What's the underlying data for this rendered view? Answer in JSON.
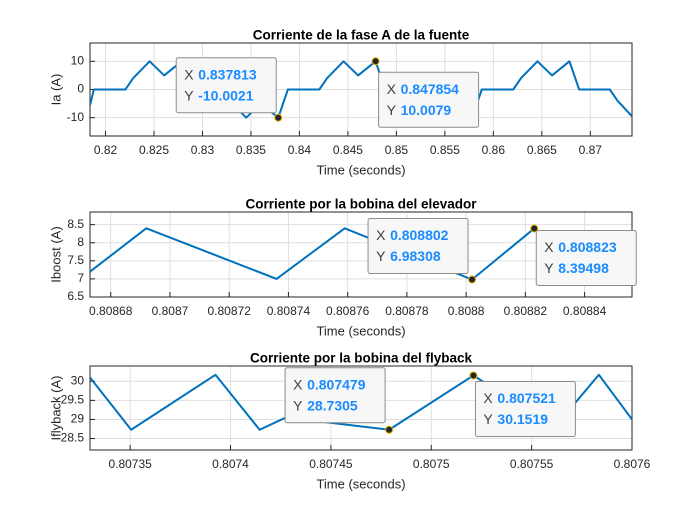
{
  "chart_data": [
    {
      "type": "line",
      "title": "Corriente de la fase A de la fuente",
      "xlabel": "Time (seconds)",
      "ylabel": "Ia (A)",
      "x": [
        0.8184,
        0.8188,
        0.82205,
        0.82285,
        0.82455,
        0.82605,
        0.82785,
        0.82885,
        0.83201,
        0.83281,
        0.83451,
        0.83601,
        0.837813,
        0.83881,
        0.84205,
        0.84285,
        0.84455,
        0.84605,
        0.847854,
        0.84885,
        0.85201,
        0.85281,
        0.85451,
        0.85601,
        0.85781,
        0.85881,
        0.86205,
        0.86285,
        0.86455,
        0.86605,
        0.86785,
        0.86885,
        0.87201,
        0.87281,
        0.8743
      ],
      "values": [
        -5.5,
        0,
        0,
        4,
        10,
        5,
        10,
        0,
        0,
        -4,
        -10,
        -5,
        -10.0021,
        0,
        0,
        4,
        10,
        5,
        10.0079,
        0,
        0,
        -4,
        -10,
        -5,
        -10,
        0,
        0,
        4,
        10,
        5,
        10,
        0,
        0,
        -4,
        -9.5
      ],
      "color": "#0072bd",
      "xlim": [
        0.8184,
        0.8743
      ],
      "xticks": [
        0.82,
        0.825,
        0.83,
        0.835,
        0.84,
        0.845,
        0.85,
        0.855,
        0.86,
        0.865,
        0.87
      ],
      "ylim": [
        -16.5,
        16.5
      ],
      "yticks": [
        -10,
        0,
        10
      ],
      "grid": true,
      "datatip_labels": [
        "X",
        "Y"
      ],
      "datatips": [
        {
          "x": 0.837813,
          "y": -10.0021
        },
        {
          "x": 0.847854,
          "y": 10.0079
        }
      ]
    },
    {
      "type": "line",
      "title": "Corriente por la bobina del elevador",
      "xlabel": "Time (seconds)",
      "ylabel": "Iboost (A)",
      "x": [
        0.808673,
        0.808692,
        0.808736,
        0.808759,
        0.808802,
        0.808823
      ],
      "values": [
        7.2,
        8.4,
        7.0,
        8.4,
        6.98308,
        8.39498
      ],
      "color": "#0072bd",
      "xlim": [
        0.808673,
        0.808856
      ],
      "xticks": [
        0.80868,
        0.8087,
        0.80872,
        0.80874,
        0.80876,
        0.80878,
        0.8088,
        0.80882,
        0.80884
      ],
      "ylim": [
        6.5,
        8.85
      ],
      "yticks": [
        6.5,
        7,
        7.5,
        8,
        8.5
      ],
      "grid": true,
      "datatip_labels": [
        "X",
        "Y"
      ],
      "datatips": [
        {
          "x": 0.808802,
          "y": 6.98308
        },
        {
          "x": 0.808823,
          "y": 8.39498
        }
      ]
    },
    {
      "type": "line",
      "title": "Corriente por la bobina del flyback",
      "xlabel": "Time (seconds)",
      "ylabel": "Iflyback (A)",
      "x": [
        0.80733,
        0.8073505,
        0.8073925,
        0.8074145,
        0.8074275,
        0.807479,
        0.807521,
        0.8075615,
        0.8075835,
        0.8076
      ],
      "values": [
        30.1,
        28.73,
        30.17,
        28.73,
        29.05,
        28.7305,
        30.1519,
        28.8,
        30.17,
        29.0
      ],
      "color": "#0072bd",
      "xlim": [
        0.80733,
        0.8076
      ],
      "xticks": [
        0.80735,
        0.8074,
        0.80745,
        0.8075,
        0.80755,
        0.8076
      ],
      "ylim": [
        28.2,
        30.4
      ],
      "yticks": [
        28.5,
        29,
        29.5,
        30
      ],
      "grid": true,
      "datatip_labels": [
        "X",
        "Y"
      ],
      "datatips": [
        {
          "x": 0.807479,
          "y": 28.7305
        },
        {
          "x": 0.807521,
          "y": 30.1519
        }
      ]
    }
  ]
}
